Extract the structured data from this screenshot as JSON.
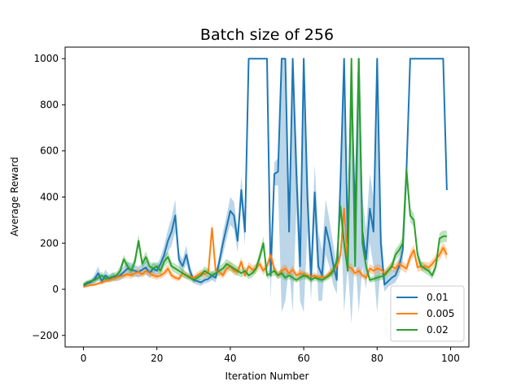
{
  "chart_data": {
    "type": "line",
    "title": "Batch size of 256",
    "xlabel": "Iteration Number",
    "ylabel": "Average Reward",
    "xlim": [
      -5,
      105
    ],
    "ylim": [
      -250,
      1050
    ],
    "xticks": [
      0,
      20,
      40,
      60,
      80,
      100
    ],
    "yticks": [
      -200,
      0,
      200,
      400,
      600,
      800,
      1000
    ],
    "xtick_labels": [
      "0",
      "20",
      "40",
      "60",
      "80",
      "100"
    ],
    "ytick_labels": [
      "−200",
      "0",
      "200",
      "400",
      "600",
      "800",
      "1000"
    ],
    "grid": false,
    "legend_position": "lower-right",
    "x": [
      0,
      1,
      2,
      3,
      4,
      5,
      6,
      7,
      8,
      9,
      10,
      11,
      12,
      13,
      14,
      15,
      16,
      17,
      18,
      19,
      20,
      21,
      22,
      23,
      24,
      25,
      26,
      27,
      28,
      29,
      30,
      31,
      32,
      33,
      34,
      35,
      36,
      37,
      38,
      39,
      40,
      41,
      42,
      43,
      44,
      45,
      46,
      47,
      48,
      49,
      50,
      51,
      52,
      53,
      54,
      55,
      56,
      57,
      58,
      59,
      60,
      61,
      62,
      63,
      64,
      65,
      66,
      67,
      68,
      69,
      70,
      71,
      72,
      73,
      74,
      75,
      76,
      77,
      78,
      79,
      80,
      81,
      82,
      83,
      84,
      85,
      86,
      87,
      88,
      89,
      90,
      91,
      92,
      93,
      94,
      95,
      96,
      97,
      98,
      99
    ],
    "series": [
      {
        "name": "0.01",
        "color": "#1f77b4",
        "values": [
          15,
          25,
          30,
          45,
          70,
          35,
          60,
          45,
          55,
          50,
          60,
          75,
          90,
          85,
          80,
          75,
          85,
          95,
          70,
          90,
          80,
          110,
          150,
          210,
          250,
          320,
          130,
          100,
          150,
          80,
          40,
          35,
          30,
          40,
          45,
          60,
          50,
          120,
          200,
          270,
          340,
          320,
          210,
          430,
          250,
          1000,
          1000,
          1000,
          1000,
          1000,
          1000,
          60,
          500,
          510,
          1000,
          1000,
          250,
          1000,
          500,
          100,
          1000,
          400,
          50,
          420,
          100,
          60,
          270,
          200,
          110,
          40,
          460,
          1000,
          200,
          900,
          300,
          1000,
          250,
          130,
          350,
          250,
          1000,
          200,
          20,
          35,
          50,
          60,
          100,
          170,
          510,
          1000,
          1000,
          1000,
          1000,
          1000,
          1000,
          1000,
          1000,
          1000,
          1000,
          430
        ],
        "lower": [
          5,
          15,
          20,
          25,
          40,
          20,
          35,
          30,
          35,
          35,
          40,
          50,
          60,
          55,
          55,
          50,
          60,
          65,
          50,
          60,
          55,
          80,
          110,
          160,
          190,
          250,
          100,
          70,
          110,
          55,
          25,
          20,
          15,
          25,
          30,
          40,
          30,
          90,
          150,
          220,
          280,
          260,
          160,
          370,
          190,
          1000,
          1000,
          1000,
          1000,
          1000,
          1000,
          -50,
          450,
          450,
          -100,
          -50,
          100,
          -100,
          350,
          -50,
          -100,
          250,
          -50,
          300,
          -50,
          -50,
          150,
          100,
          20,
          -20,
          350,
          -100,
          100,
          -150,
          150,
          -100,
          100,
          0,
          200,
          100,
          -100,
          100,
          -10,
          10,
          20,
          30,
          60,
          120,
          420,
          1000,
          1000,
          1000,
          1000,
          1000,
          1000,
          1000,
          1000,
          1000,
          1000,
          430
        ],
        "upper": [
          25,
          35,
          40,
          65,
          100,
          50,
          85,
          60,
          75,
          65,
          80,
          100,
          120,
          115,
          105,
          100,
          110,
          125,
          90,
          120,
          105,
          140,
          190,
          260,
          310,
          390,
          160,
          130,
          190,
          105,
          55,
          50,
          45,
          55,
          60,
          80,
          70,
          150,
          250,
          320,
          400,
          380,
          260,
          490,
          310,
          1000,
          1000,
          1000,
          1000,
          1000,
          1000,
          170,
          550,
          570,
          1000,
          1000,
          400,
          1000,
          650,
          250,
          1000,
          550,
          150,
          540,
          250,
          170,
          390,
          300,
          200,
          100,
          570,
          1000,
          300,
          1000,
          450,
          1000,
          400,
          260,
          500,
          400,
          1000,
          300,
          50,
          60,
          80,
          90,
          140,
          220,
          600,
          1000,
          1000,
          1000,
          1000,
          1000,
          1000,
          1000,
          1000,
          1000,
          1000,
          430
        ]
      },
      {
        "name": "0.005",
        "color": "#ff7f0e",
        "values": [
          10,
          15,
          18,
          20,
          25,
          30,
          35,
          40,
          45,
          50,
          55,
          60,
          65,
          60,
          70,
          75,
          65,
          80,
          70,
          60,
          55,
          60,
          70,
          90,
          60,
          50,
          45,
          70,
          60,
          55,
          50,
          60,
          70,
          65,
          75,
          265,
          80,
          75,
          60,
          90,
          100,
          80,
          75,
          120,
          60,
          100,
          85,
          90,
          110,
          80,
          100,
          150,
          85,
          60,
          80,
          90,
          70,
          85,
          60,
          70,
          65,
          60,
          55,
          60,
          50,
          55,
          50,
          70,
          80,
          100,
          150,
          350,
          100,
          90,
          70,
          80,
          60,
          50,
          90,
          80,
          90,
          85,
          70,
          80,
          100,
          90,
          110,
          100,
          90,
          140,
          170,
          95,
          100,
          100,
          95,
          110,
          130,
          150,
          180,
          150
        ],
        "lower": [
          5,
          10,
          12,
          14,
          18,
          22,
          26,
          30,
          34,
          38,
          42,
          46,
          50,
          46,
          55,
          58,
          50,
          62,
          54,
          46,
          42,
          46,
          54,
          70,
          46,
          38,
          34,
          54,
          46,
          42,
          38,
          46,
          54,
          50,
          58,
          240,
          62,
          58,
          46,
          70,
          80,
          62,
          58,
          100,
          46,
          80,
          66,
          70,
          90,
          62,
          80,
          125,
          66,
          46,
          62,
          70,
          54,
          66,
          46,
          54,
          50,
          46,
          42,
          46,
          38,
          42,
          38,
          54,
          62,
          80,
          120,
          320,
          80,
          70,
          54,
          62,
          46,
          38,
          70,
          62,
          70,
          66,
          54,
          62,
          80,
          70,
          90,
          80,
          70,
          115,
          145,
          75,
          80,
          80,
          75,
          90,
          110,
          125,
          155,
          125
        ],
        "upper": [
          15,
          20,
          24,
          26,
          32,
          38,
          44,
          50,
          56,
          62,
          68,
          74,
          80,
          74,
          85,
          92,
          80,
          98,
          86,
          74,
          68,
          74,
          86,
          110,
          74,
          62,
          56,
          86,
          74,
          68,
          62,
          74,
          86,
          80,
          92,
          290,
          98,
          92,
          74,
          110,
          120,
          98,
          92,
          140,
          74,
          120,
          104,
          110,
          130,
          98,
          120,
          175,
          104,
          74,
          98,
          110,
          86,
          104,
          74,
          86,
          80,
          74,
          68,
          74,
          62,
          68,
          62,
          86,
          98,
          120,
          180,
          380,
          120,
          110,
          86,
          98,
          74,
          62,
          110,
          98,
          110,
          104,
          86,
          98,
          120,
          110,
          130,
          120,
          110,
          165,
          195,
          115,
          120,
          120,
          115,
          130,
          150,
          175,
          205,
          175
        ],
        "dash": false
      },
      {
        "name": "0.02",
        "color": "#2ca02c",
        "values": [
          20,
          30,
          35,
          40,
          50,
          60,
          45,
          50,
          55,
          60,
          80,
          130,
          100,
          80,
          120,
          210,
          110,
          140,
          100,
          90,
          100,
          80,
          120,
          140,
          100,
          90,
          80,
          70,
          60,
          50,
          40,
          50,
          60,
          80,
          70,
          60,
          70,
          80,
          90,
          110,
          100,
          90,
          80,
          70,
          80,
          60,
          70,
          90,
          140,
          200,
          60,
          70,
          80,
          60,
          70,
          50,
          60,
          50,
          40,
          50,
          60,
          55,
          40,
          50,
          45,
          40,
          50,
          60,
          80,
          120,
          360,
          200,
          80,
          1000,
          100,
          1000,
          200,
          100,
          40,
          45,
          50,
          55,
          60,
          80,
          100,
          150,
          170,
          200,
          520,
          320,
          300,
          150,
          100,
          90,
          80,
          60,
          100,
          220,
          230,
          230
        ],
        "lower": [
          10,
          20,
          25,
          28,
          36,
          44,
          32,
          36,
          40,
          44,
          60,
          110,
          80,
          60,
          95,
          180,
          90,
          115,
          80,
          70,
          80,
          60,
          95,
          115,
          80,
          70,
          60,
          52,
          44,
          36,
          28,
          36,
          44,
          60,
          52,
          44,
          52,
          60,
          68,
          88,
          80,
          70,
          60,
          52,
          60,
          44,
          52,
          70,
          115,
          170,
          44,
          52,
          60,
          44,
          52,
          36,
          44,
          36,
          28,
          36,
          44,
          40,
          28,
          36,
          32,
          28,
          36,
          44,
          60,
          95,
          320,
          170,
          60,
          1000,
          80,
          1000,
          170,
          80,
          28,
          32,
          36,
          40,
          44,
          60,
          80,
          125,
          145,
          170,
          470,
          290,
          270,
          125,
          80,
          70,
          60,
          44,
          80,
          195,
          205,
          205
        ],
        "upper": [
          30,
          40,
          45,
          52,
          64,
          76,
          58,
          64,
          70,
          76,
          100,
          150,
          120,
          100,
          145,
          240,
          130,
          165,
          120,
          110,
          120,
          100,
          145,
          165,
          120,
          110,
          100,
          88,
          76,
          64,
          52,
          64,
          76,
          100,
          88,
          76,
          88,
          100,
          112,
          132,
          120,
          110,
          100,
          88,
          100,
          76,
          88,
          110,
          165,
          230,
          76,
          88,
          100,
          76,
          88,
          64,
          76,
          64,
          52,
          64,
          76,
          70,
          52,
          64,
          58,
          52,
          64,
          76,
          100,
          145,
          400,
          230,
          100,
          1000,
          120,
          1000,
          230,
          120,
          52,
          58,
          64,
          70,
          76,
          100,
          120,
          175,
          195,
          230,
          570,
          350,
          330,
          175,
          120,
          110,
          100,
          76,
          120,
          245,
          255,
          255
        ]
      }
    ]
  }
}
